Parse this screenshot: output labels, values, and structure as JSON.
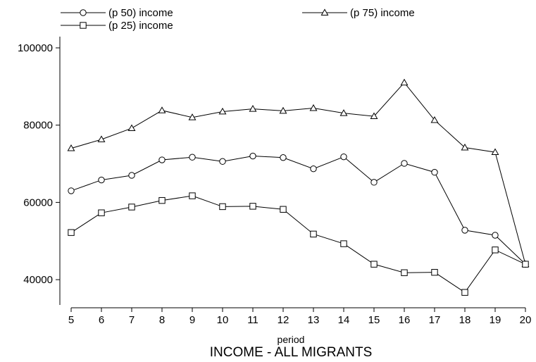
{
  "chart_data": {
    "type": "line",
    "title": "INCOME - ALL MIGRANTS",
    "xlabel": "period",
    "ylabel": "",
    "x": [
      5,
      6,
      7,
      8,
      9,
      10,
      11,
      12,
      13,
      14,
      15,
      16,
      17,
      18,
      19,
      20
    ],
    "xlim": [
      5,
      20
    ],
    "ylim": [
      34000,
      102000
    ],
    "yticks": [
      40000,
      60000,
      80000,
      100000
    ],
    "xticks": [
      5,
      6,
      7,
      8,
      9,
      10,
      11,
      12,
      13,
      14,
      15,
      16,
      17,
      18,
      19,
      20
    ],
    "grid": false,
    "legend_position": "top",
    "series": [
      {
        "name": "(p 50) income",
        "marker": "circle",
        "values": [
          63000,
          65800,
          67000,
          71000,
          71700,
          70600,
          72000,
          71600,
          68700,
          71800,
          65200,
          70100,
          67800,
          52800,
          51500,
          44000
        ]
      },
      {
        "name": "(p 75) income",
        "marker": "triangle",
        "values": [
          74000,
          76300,
          79200,
          83800,
          82000,
          83500,
          84200,
          83700,
          84400,
          83100,
          82300,
          91000,
          81300,
          74200,
          73000,
          44000
        ]
      },
      {
        "name": "(p 25) income",
        "marker": "square",
        "values": [
          52200,
          57300,
          58800,
          60500,
          61700,
          58900,
          59000,
          58200,
          51800,
          49300,
          44000,
          41800,
          41900,
          36700,
          47700,
          44000
        ]
      }
    ]
  }
}
